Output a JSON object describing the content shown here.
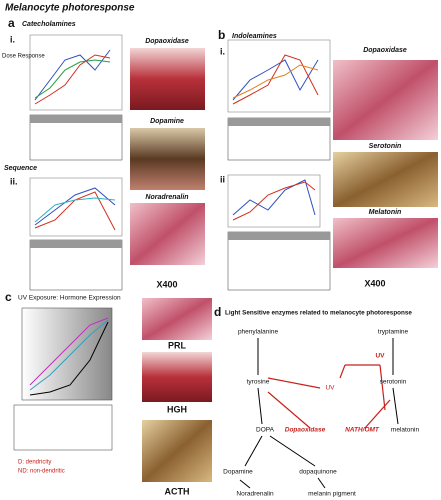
{
  "title": "Melanocyte photoresponse",
  "panel_a": {
    "label": "a",
    "heading": "Catecholamines",
    "sub1": "i.",
    "dose": "Dose Response",
    "sequence": "Sequence",
    "sub2": "ii.",
    "images": [
      "Dopaoxidase",
      "Dopamine",
      "Noradrenalin"
    ],
    "magnification": "X400"
  },
  "panel_b": {
    "label": "b",
    "heading": "Indoleamines",
    "sub1": "i.",
    "sub2": "ii",
    "images": [
      "Dopaoxidase",
      "Serotonin",
      "Melatonin"
    ],
    "magnification": "X400"
  },
  "panel_c": {
    "label": "c",
    "heading": "UV Exposure: Hormone Expression",
    "images": [
      "PRL",
      "HGH",
      "ACTH"
    ],
    "legend": [
      "D: dendricity",
      "ND: non-dendritic"
    ]
  },
  "panel_d": {
    "label": "d",
    "heading": "Light Sensitive enzymes related to melanocyte photoresponse",
    "nodes": [
      "phenylalanine",
      "tyrosine",
      "DOPA",
      "Dopamine",
      "Noradrenalin",
      "dopaquinone",
      "melanin pigment",
      "tryptamine",
      "serotonin",
      "melatonin"
    ],
    "enzymes": [
      "Dopaoxidase",
      "NATH/OMT"
    ],
    "uv": [
      "UV",
      "UV"
    ]
  }
}
